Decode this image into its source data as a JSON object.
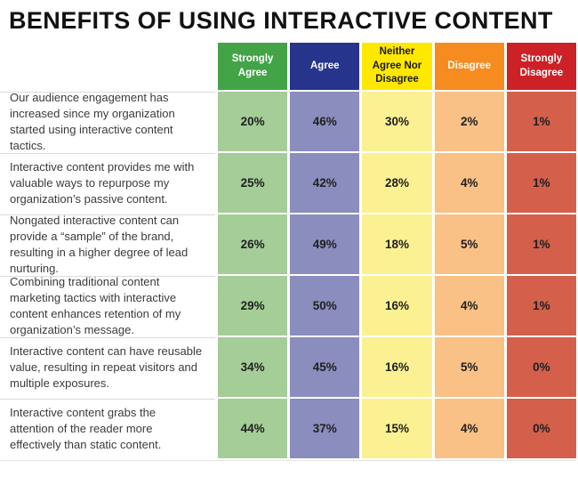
{
  "title": "BENEFITS OF USING INTERACTIVE CONTENT",
  "colors": {
    "header-green": "#43A447",
    "header-blue": "#27348B",
    "header-yellow": "#FFE800",
    "header-orange": "#F68B1F",
    "header-red": "#CB2127",
    "cell-green": "#A5CD97",
    "cell-purple": "#8B8DBE",
    "cell-yellow": "#FBF192",
    "cell-orange": "#F9C185",
    "cell-red": "#D4604C"
  },
  "chart_data": {
    "type": "table",
    "title": "BENEFITS OF USING INTERACTIVE CONTENT",
    "columns": [
      "Strongly Agree",
      "Agree",
      "Neither Agree Nor Disagree",
      "Disagree",
      "Strongly Disagree"
    ],
    "rows": [
      {
        "statement": "Our audience engagement has increased since my organization started using interactive content tactics.",
        "values": [
          "20%",
          "46%",
          "30%",
          "2%",
          "1%"
        ]
      },
      {
        "statement": "Interactive content provides me with valuable ways to repurpose my organization’s passive content.",
        "values": [
          "25%",
          "42%",
          "28%",
          "4%",
          "1%"
        ]
      },
      {
        "statement": "Nongated interactive content can provide a “sample” of the brand, resulting in a higher degree of lead nurturing.",
        "values": [
          "26%",
          "49%",
          "18%",
          "5%",
          "1%"
        ]
      },
      {
        "statement": "Combining traditional content marketing tactics with interactive content enhances retention of my organization’s message.",
        "values": [
          "29%",
          "50%",
          "16%",
          "4%",
          "1%"
        ]
      },
      {
        "statement": "Interactive content can have reusable value, resulting in repeat visitors and multiple exposures.",
        "values": [
          "34%",
          "45%",
          "16%",
          "5%",
          "0%"
        ]
      },
      {
        "statement": "Interactive content grabs the attention of the reader more effectively than static content.",
        "values": [
          "44%",
          "37%",
          "15%",
          "4%",
          "0%"
        ]
      }
    ]
  }
}
